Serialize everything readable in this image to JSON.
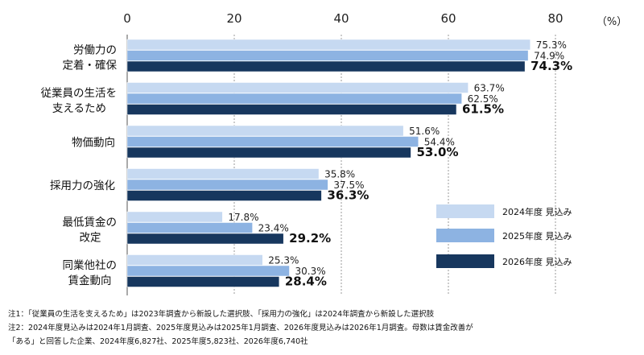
{
  "chart_data": {
    "type": "bar",
    "orientation": "horizontal",
    "unit": "（%）",
    "xlim": [
      0,
      85
    ],
    "ticks": [
      0,
      20,
      40,
      60,
      80
    ],
    "categories": [
      [
        "労働力の",
        "定着・確保"
      ],
      [
        "従業員の生活を",
        "支えるため"
      ],
      [
        "物価動向"
      ],
      [
        "採用力の強化"
      ],
      [
        "最低賃金の",
        "改定"
      ],
      [
        "同業他社の",
        "賃金動向"
      ]
    ],
    "series": [
      {
        "name": "2024年度 見込み",
        "color": "#c6d9f1",
        "values": [
          75.3,
          63.7,
          51.6,
          35.8,
          17.8,
          25.3
        ],
        "labels": [
          "75.3%",
          "63.7%",
          "51.6%",
          "35.8%",
          "17.8%",
          "25.3%"
        ]
      },
      {
        "name": "2025年度 見込み",
        "color": "#8db3e2",
        "values": [
          74.9,
          62.5,
          54.4,
          37.5,
          23.4,
          30.3
        ],
        "labels": [
          "74.9%",
          "62.5%",
          "54.4%",
          "37.5%",
          "23.4%",
          "30.3%"
        ]
      },
      {
        "name": "2026年度 見込み",
        "color": "#17375e",
        "values": [
          74.3,
          61.5,
          53.0,
          36.3,
          29.2,
          28.4
        ],
        "labels": [
          "74.3%",
          "61.5%",
          "53.0%",
          "36.3%",
          "29.2%",
          "28.4%"
        ]
      }
    ],
    "grid": true,
    "legend": "bottom-right"
  },
  "notes": [
    "注1：「従業員の生活を支えるため」は2023年調査から新設した選択肢、「採用力の強化」は2024年調査から新設した選択肢",
    "注2：2024年度見込みは2024年1月調査、2025年度見込みは2025年1月調査、2026年度見込みは2026年1月調査。母数は賃金改善が",
    "「ある」と回答した企業、2024年度6,827社、2025年度5,823社、2026年度6,740社"
  ]
}
